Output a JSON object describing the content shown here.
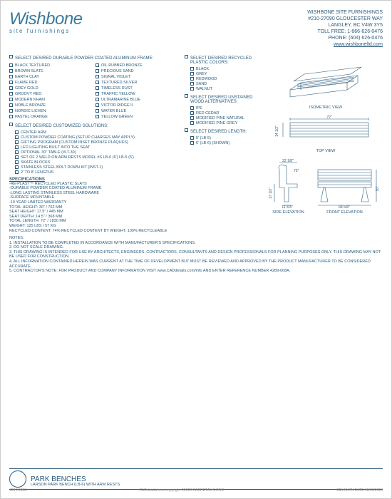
{
  "company": {
    "logo_text": "Wishbone",
    "logo_subtitle": "site furnishings",
    "name": "WISHBONE SITE FURNISHINGS",
    "address1": "#210-27090 GLOUCESTER WAY",
    "address2": "LANGLEY, BC V4W 3Y5",
    "tollfree": "TOLL FREE: 1-866-626-0476",
    "phone": "PHONE: (604) 626-0476",
    "website": "www.wishboneltd.com"
  },
  "sections": {
    "frame": {
      "title": "SELECT DESIRED DURABLE POWDER COATED ALUMINUM FRAME:",
      "options_left": [
        "BLACK TEXTURED",
        "BROWN SLATE",
        "EARTH CLAY",
        "FLAME RED",
        "GREY GOLD",
        "GROOVY RED",
        "MODERN KHAKI",
        "NOBLE BRONZE",
        "NORDIC LICHEN",
        "PASTEL ORANGE"
      ],
      "options_right": [
        "OIL RUBBED BRONZE",
        "PRECIOUS SAND",
        "SIGNAL VIOLET",
        "TEXTURED SILVER",
        "TIMELESS RUST",
        "TRAFFIC YELLOW",
        "ULTRAMARINE BLUE",
        "VICTOR RIDGE II",
        "WATER BLUE",
        "YELLOW GREEN"
      ]
    },
    "custom": {
      "title": "SELECT DESIRED CUSTOMIZED SOLUTIONS:",
      "options": [
        "CENTER ARM",
        "CUSTOM POWDER COATING (SETUP CHARGES MAY APPLY)",
        "GIFTING PROGRAM (CUSTOM INSET BRONZE PLAQUES)",
        "LED LIGHTING BUILT INTO THE SEAT",
        "OPTIONAL 30\" TABLE (#LT-30)",
        "SET OF 2 WELD ON ARM RESTS MODEL #S LB-6 (6') LB-5 (5')",
        "SKATE BLOCKS",
        "STAINLESS STEEL BOLT DOWN KIT (INST-1)",
        "2' TO 8' LENGTHS"
      ]
    },
    "plastic": {
      "title": "SELECT DESIRED RECYCLED PLASTIC COLORS:",
      "options": [
        "BLACK",
        "GREY",
        "REDWOOD",
        "SAND",
        "WALNUT"
      ]
    },
    "wood": {
      "title": "SELECT DESIRED UNSTAINED WOOD ALTERNATIVES:",
      "options": [
        "IPE",
        "RED CEDAR",
        "MODIFIED PINE NATURAL",
        "MODIFIED PINE GREY"
      ]
    },
    "length": {
      "title": "SELECT DESIRED LENGTH:",
      "options": [
        "5' (LB-5)",
        "6' (LB-6) (SHOWN)"
      ]
    }
  },
  "specifications": {
    "title": "SPECIFICATIONS",
    "lines": [
      "-RE-PLAST™ RECYCLED PLASTIC SLATS",
      "-DURABLE POWDER COATED ALUMINUM FRAME",
      "-LONG LASTING STAINLESS STEEL HARDWARE",
      "-SURFACE MOUNTABLE",
      "-10 YEAR LIMITED WARRANTY",
      "TOTAL HEIGHT: 30\" / 762 MM",
      "SEAT HEIGHT: 17.5\" / 445 MM",
      "SEAT DEPTH: 14.5\" / 368 MM",
      "TOTAL LENGTH: 72\" / 1830 MM",
      "WEIGHT: 125 LBS / 57 KG",
      "RECYCLED CONTENT: 74% RECYCLED CONTENT BY WEIGHT, 100% RECYCLEABLE"
    ]
  },
  "notes": {
    "title": "NOTES:",
    "lines": [
      "1.   INSTALLATION TO BE COMPLETED IN ACCORDANCE WITH MANUFACTURER'S SPECIFICATIONS.",
      "2.   DO NOT SCALE DRAWING.",
      "3.   THIS DRAWING IS INTENDED FOR USE BY ARCHITECTS, ENGINEERS, CONTRACTORS, CONSULTANTS AND DESIGN PROFESSIONALS FOR PLANNING PURPOSES ONLY. THIS DRAWING MAY NOT BE USED FOR CONSTRUCTION.",
      "4.   ALL INFORMATION CONTAINED HEREIN WAS CURRENT AT THE TIME OF DEVELOPMENT BUT MUST BE REVIEWED AND APPROVED BY THE PRODUCT MANUFACTURER TO BE CONSIDERED ACCURATE.",
      "5.   CONTRACTOR'S NOTE: FOR PRODUCT AND COMPANY INFORMATION VISIT www.CADdetails.com/info AND ENTER REFERENCE NUMBER 4289-008A."
    ]
  },
  "drawings": {
    "iso": "ISOMETRIC VIEW",
    "top": "TOP VIEW",
    "side": "SIDE ELEVATION",
    "front": "FRONT ELEVATION",
    "dims": {
      "top_width": "72\"",
      "top_depth": "14 1/2\"",
      "side_width": "22 1/8\"",
      "side_base": "11 3/4\"",
      "side_height": "17 1/2\"",
      "side_angle": "75°",
      "front_width": "68 5/8\"",
      "front_height": "30\""
    }
  },
  "footer": {
    "category": "PARK BENCHES",
    "product": "LARSON PARK BENCH (LB-6) WITH ARM RESTS",
    "ref": "4289-008A",
    "copyright": "CADdetails.com copyright ©2023 CADDETAILS.COM",
    "revision": "REVISION DATE 08/30/2023"
  },
  "colors": {
    "primary": "#2a5a7a",
    "logo": "#3a7a9a",
    "stroke": "#2a5a7a"
  }
}
